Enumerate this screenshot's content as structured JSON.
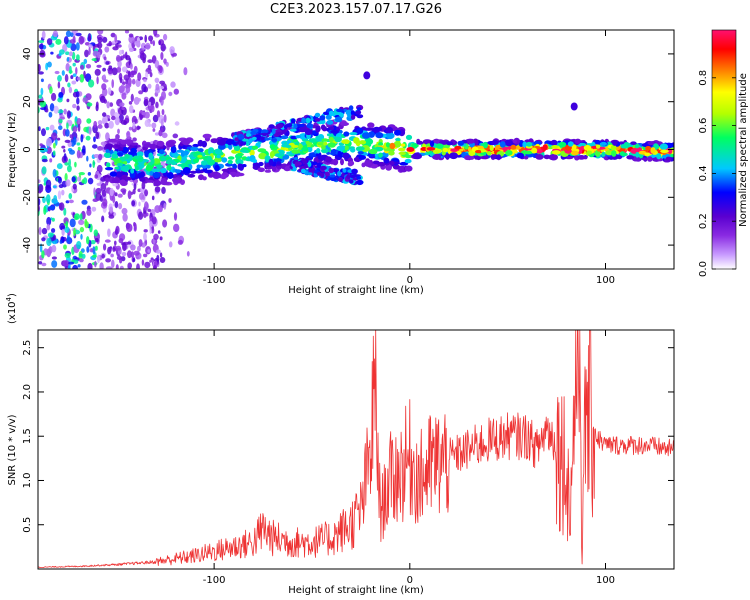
{
  "figure_title": "C2E3.2023.157.07.17.G26",
  "chart_data": [
    {
      "type": "heatmap",
      "title": "C2E3.2023.157.07.17.G26",
      "xlabel": "Height of straight line (km)",
      "ylabel": "Frequency (Hz)",
      "xlim": [
        -190,
        135
      ],
      "ylim": [
        -50,
        50
      ],
      "xticks": [
        -100,
        0,
        100
      ],
      "xtick_labels": [
        "-100",
        "0",
        "100"
      ],
      "yticks": [
        -40,
        -20,
        0,
        20,
        40
      ],
      "ytick_labels": [
        "-40",
        "-20",
        "0",
        "20",
        "40"
      ],
      "colorbar": {
        "label": "Normalized spectral amplitude",
        "range": [
          0,
          1
        ],
        "ticks": [
          0.0,
          0.2,
          0.4,
          0.6,
          0.8
        ],
        "tick_labels": [
          "0.0",
          "0.2",
          "0.4",
          "0.6",
          "0.8"
        ],
        "colors": [
          "#ffffff",
          "#c89bff",
          "#8a2be2",
          "#5a00d0",
          "#0000ff",
          "#00c8ff",
          "#00ff60",
          "#b4ff00",
          "#ffff00",
          "#ff8000",
          "#ff0000",
          "#ff1070"
        ]
      },
      "features": {
        "broadband_noise_x_range": [
          -190,
          -125
        ],
        "signal_trace": [
          {
            "x": -155,
            "f": -5,
            "amp": 0.4
          },
          {
            "x": -130,
            "f": -6,
            "amp": 0.45
          },
          {
            "x": -100,
            "f": -3,
            "amp": 0.45
          },
          {
            "x": -70,
            "f": 0,
            "amp": 0.5
          },
          {
            "x": -40,
            "f": 3,
            "amp": 0.45
          },
          {
            "x": -20,
            "f": 2,
            "amp": 0.5
          },
          {
            "x": 0,
            "f": 0,
            "amp": 0.7
          },
          {
            "x": 40,
            "f": 0,
            "amp": 0.85
          },
          {
            "x": 80,
            "f": 0,
            "amp": 0.9
          },
          {
            "x": 100,
            "f": 0,
            "amp": 0.85
          },
          {
            "x": 135,
            "f": -1,
            "amp": 0.8
          }
        ],
        "secondary_branches": [
          {
            "x": [
              -90,
              -60,
              -40,
              -25
            ],
            "f": [
              4,
              10,
              14,
              16
            ]
          },
          {
            "x": [
              -60,
              -40,
              -25
            ],
            "f": [
              -6,
              -10,
              -12
            ]
          }
        ],
        "isolated_spots": [
          {
            "x": -22,
            "f": 31
          },
          {
            "x": 84,
            "f": 18
          }
        ]
      }
    },
    {
      "type": "line",
      "xlabel": "Height of straight line (km)",
      "ylabel": "SNR (10 * v/v)",
      "y_multiplier_label": "(x10",
      "y_multiplier_exponent": "4",
      "xlim": [
        -190,
        135
      ],
      "ylim": [
        0,
        2.7
      ],
      "xticks": [
        -100,
        0,
        100
      ],
      "xtick_labels": [
        "-100",
        "0",
        "100"
      ],
      "yticks": [
        0.5,
        1.0,
        1.5,
        2.0,
        2.5
      ],
      "ytick_labels": [
        "0.5",
        "1.0",
        "1.5",
        "2.0",
        "2.5"
      ],
      "color": "#ee3333",
      "series": [
        {
          "name": "SNR",
          "x": [
            -190,
            -170,
            -150,
            -130,
            -110,
            -100,
            -90,
            -80,
            -75,
            -70,
            -60,
            -50,
            -40,
            -30,
            -25,
            -20,
            -18,
            -15,
            -12,
            -10,
            -5,
            0,
            5,
            10,
            20,
            30,
            40,
            50,
            60,
            65,
            70,
            75,
            80,
            82,
            85,
            87,
            88,
            90,
            95,
            100,
            110,
            120,
            135
          ],
          "y": [
            0.02,
            0.03,
            0.05,
            0.08,
            0.15,
            0.2,
            0.25,
            0.3,
            0.45,
            0.35,
            0.3,
            0.3,
            0.35,
            0.5,
            0.65,
            1.3,
            2.1,
            0.6,
            0.9,
            1.0,
            1.1,
            1.25,
            1.0,
            1.15,
            1.25,
            1.35,
            1.45,
            1.5,
            1.5,
            1.35,
            1.6,
            1.4,
            1.2,
            0.6,
            2.4,
            2.7,
            0.1,
            1.9,
            1.5,
            1.4,
            1.4,
            1.4,
            1.35
          ]
        }
      ]
    }
  ]
}
